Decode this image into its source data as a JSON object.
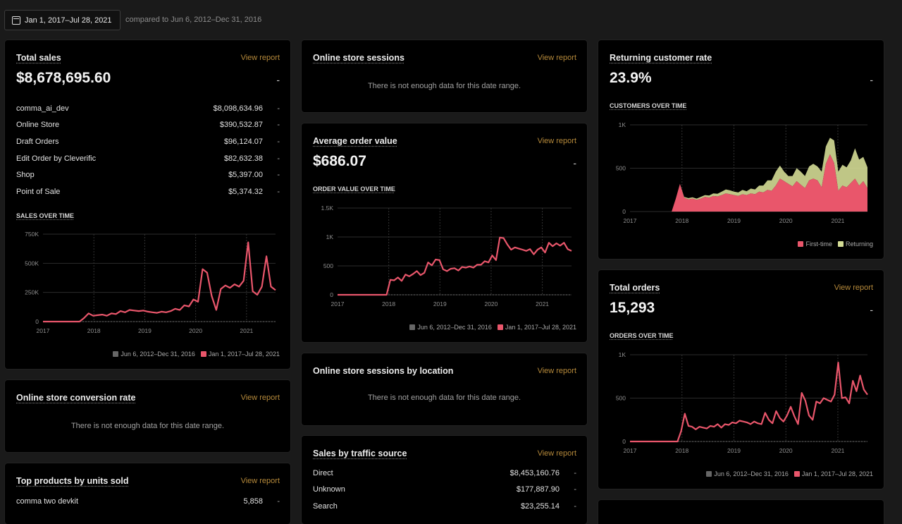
{
  "toolbar": {
    "date_range": "Jan 1, 2017–Jul 28, 2021",
    "compared": "compared to Jun 6, 2012–Dec 31, 2016"
  },
  "common": {
    "view_report": "View report",
    "no_data": "There is not enough data for this date range.",
    "dash": "-",
    "legend_prev": "Jun 6, 2012–Dec 31, 2016",
    "legend_curr": "Jan 1, 2017–Jul 28, 2021"
  },
  "colors": {
    "primary": "#e9566b",
    "returning": "#d4dc95",
    "previous": "#666666",
    "link": "#b5893a"
  },
  "total_sales": {
    "title": "Total sales",
    "value": "$8,678,695.60",
    "rows": [
      {
        "label": "comma_ai_dev",
        "value": "$8,098,634.96"
      },
      {
        "label": "Online Store",
        "value": "$390,532.87"
      },
      {
        "label": "Draft Orders",
        "value": "$96,124.07"
      },
      {
        "label": "Edit Order by Cleverific",
        "value": "$82,632.38"
      },
      {
        "label": "Shop",
        "value": "$5,397.00"
      },
      {
        "label": "Point of Sale",
        "value": "$5,374.32"
      }
    ],
    "sub": "SALES OVER TIME"
  },
  "sessions": {
    "title": "Online store sessions"
  },
  "aov": {
    "title": "Average order value",
    "value": "$686.07",
    "sub": "ORDER VALUE OVER TIME"
  },
  "returning": {
    "title": "Returning customer rate",
    "value": "23.9%",
    "sub": "CUSTOMERS OVER TIME",
    "legend_first": "First-time",
    "legend_returning": "Returning"
  },
  "conversion": {
    "title": "Online store conversion rate"
  },
  "sessions_location": {
    "title": "Online store sessions by location"
  },
  "total_orders": {
    "title": "Total orders",
    "value": "15,293",
    "sub": "ORDERS OVER TIME"
  },
  "traffic": {
    "title": "Sales by traffic source",
    "rows": [
      {
        "label": "Direct",
        "value": "$8,453,160.76"
      },
      {
        "label": "Unknown",
        "value": "$177,887.90"
      },
      {
        "label": "Search",
        "value": "$23,255.14"
      }
    ]
  },
  "top_products": {
    "title": "Top products by units sold",
    "rows": [
      {
        "label": "comma two devkit",
        "value": "5,858"
      }
    ]
  },
  "chart_data": [
    {
      "id": "sales",
      "type": "line",
      "x_start": 2017.0,
      "x_end": 2021.57,
      "x_ticks": [
        "2017",
        "2018",
        "2019",
        "2020",
        "2021"
      ],
      "y_ticks": [
        "0",
        "250K",
        "500K",
        "750K"
      ],
      "ylim": [
        0,
        750000
      ],
      "series": [
        {
          "name": "Jan 1, 2017–Jul 28, 2021",
          "values": [
            0,
            0,
            0,
            0,
            0,
            0,
            0,
            0,
            0,
            30000,
            70000,
            50000,
            55000,
            60000,
            50000,
            70000,
            65000,
            90000,
            80000,
            100000,
            95000,
            90000,
            95000,
            85000,
            80000,
            75000,
            85000,
            80000,
            90000,
            110000,
            100000,
            140000,
            130000,
            190000,
            170000,
            450000,
            420000,
            220000,
            100000,
            280000,
            310000,
            290000,
            320000,
            300000,
            350000,
            680000,
            260000,
            230000,
            300000,
            560000,
            300000,
            270000
          ]
        }
      ]
    },
    {
      "id": "aov",
      "type": "line",
      "x_start": 2017.0,
      "x_end": 2021.57,
      "x_ticks": [
        "2017",
        "2018",
        "2019",
        "2020",
        "2021"
      ],
      "y_ticks": [
        "0",
        "500",
        "1K",
        "1.5K"
      ],
      "ylim": [
        0,
        1500
      ],
      "series": [
        {
          "name": "Jan 1, 2017–Jul 28, 2021",
          "values": [
            0,
            0,
            0,
            0,
            0,
            0,
            0,
            0,
            0,
            0,
            0,
            0,
            0,
            0,
            260,
            250,
            300,
            240,
            350,
            320,
            360,
            410,
            340,
            380,
            560,
            510,
            610,
            600,
            440,
            410,
            450,
            460,
            420,
            480,
            470,
            490,
            470,
            520,
            520,
            580,
            560,
            680,
            600,
            990,
            980,
            870,
            780,
            820,
            800,
            780,
            760,
            790,
            700,
            780,
            820,
            730,
            900,
            840,
            890,
            850,
            900,
            790,
            760
          ]
        }
      ]
    },
    {
      "id": "customers",
      "type": "area",
      "x_start": 2017.0,
      "x_end": 2021.57,
      "x_ticks": [
        "2017",
        "2018",
        "2019",
        "2020",
        "2021"
      ],
      "y_ticks": [
        "0",
        "500",
        "1K"
      ],
      "ylim": [
        0,
        1000
      ],
      "series": [
        {
          "name": "First-time",
          "values": [
            0,
            0,
            0,
            0,
            0,
            0,
            0,
            0,
            0,
            0,
            0,
            150,
            320,
            160,
            140,
            150,
            135,
            150,
            170,
            160,
            180,
            175,
            190,
            210,
            200,
            190,
            180,
            200,
            190,
            210,
            200,
            230,
            220,
            250,
            240,
            300,
            380,
            350,
            320,
            290,
            350,
            310,
            270,
            360,
            380,
            360,
            280,
            550,
            660,
            560,
            240,
            300,
            280,
            330,
            380,
            300,
            350,
            270
          ]
        },
        {
          "name": "Returning",
          "values": [
            0,
            0,
            0,
            0,
            0,
            0,
            0,
            0,
            0,
            0,
            0,
            0,
            0,
            10,
            15,
            15,
            15,
            20,
            20,
            25,
            30,
            30,
            40,
            45,
            45,
            40,
            40,
            50,
            45,
            55,
            55,
            70,
            80,
            110,
            120,
            160,
            150,
            110,
            90,
            120,
            150,
            150,
            140,
            160,
            170,
            160,
            180,
            200,
            190,
            260,
            220,
            240,
            230,
            260,
            350,
            300,
            280,
            240
          ]
        }
      ]
    },
    {
      "id": "orders",
      "type": "line",
      "x_start": 2017.0,
      "x_end": 2021.57,
      "x_ticks": [
        "2017",
        "2018",
        "2019",
        "2020",
        "2021"
      ],
      "y_ticks": [
        "0",
        "500",
        "1K"
      ],
      "ylim": [
        0,
        1000
      ],
      "series": [
        {
          "name": "Jan 1, 2017–Jul 28, 2021",
          "values": [
            0,
            0,
            0,
            0,
            0,
            0,
            0,
            0,
            0,
            0,
            0,
            0,
            0,
            0,
            120,
            320,
            180,
            170,
            140,
            170,
            160,
            150,
            180,
            170,
            200,
            160,
            200,
            190,
            220,
            210,
            240,
            230,
            220,
            200,
            230,
            210,
            200,
            330,
            250,
            210,
            350,
            270,
            230,
            300,
            400,
            290,
            200,
            560,
            470,
            300,
            250,
            460,
            440,
            500,
            480,
            460,
            540,
            910,
            500,
            510,
            440,
            700,
            580,
            760,
            600,
            540
          ]
        }
      ]
    }
  ]
}
